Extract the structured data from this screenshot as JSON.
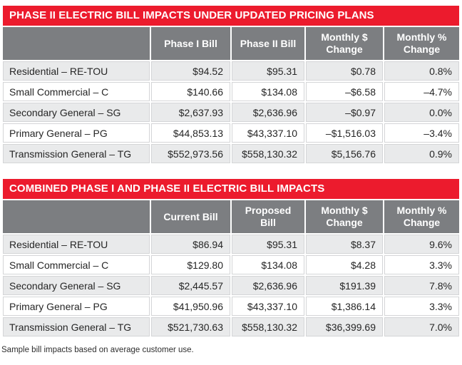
{
  "colors": {
    "accent_red": "#EC1B2D",
    "header_gray": "#7C7E81",
    "row_alt_gray": "#E9EAEB"
  },
  "footnote": "Sample bill impacts based on average customer use.",
  "tables": [
    {
      "title": "PHASE II ELECTRIC BILL IMPACTS UNDER UPDATED PRICING PLANS",
      "columns": [
        "",
        "Phase I Bill",
        "Phase II Bill",
        "Monthly $\nChange",
        "Monthly %\nChange"
      ],
      "rows": [
        [
          "Residential – RE-TOU",
          "$94.52",
          "$95.31",
          "$0.78",
          "0.8%"
        ],
        [
          "Small Commercial – C",
          "$140.66",
          "$134.08",
          "–$6.58",
          "–4.7%"
        ],
        [
          "Secondary General – SG",
          "$2,637.93",
          "$2,636.96",
          "–$0.97",
          "0.0%"
        ],
        [
          "Primary General – PG",
          "$44,853.13",
          "$43,337.10",
          "–$1,516.03",
          "–3.4%"
        ],
        [
          "Transmission General – TG",
          "$552,973.56",
          "$558,130.32",
          "$5,156.76",
          "0.9%"
        ]
      ]
    },
    {
      "title": "COMBINED PHASE I AND PHASE II ELECTRIC BILL IMPACTS",
      "columns": [
        "",
        "Current Bill",
        "Proposed\nBill",
        "Monthly $\nChange",
        "Monthly %\nChange"
      ],
      "rows": [
        [
          "Residential – RE-TOU",
          "$86.94",
          "$95.31",
          "$8.37",
          "9.6%"
        ],
        [
          "Small Commercial – C",
          "$129.80",
          "$134.08",
          "$4.28",
          "3.3%"
        ],
        [
          "Secondary General – SG",
          "$2,445.57",
          "$2,636.96",
          "$191.39",
          "7.8%"
        ],
        [
          "Primary General – PG",
          "$41,950.96",
          "$43,337.10",
          "$1,386.14",
          "3.3%"
        ],
        [
          "Transmission General – TG",
          "$521,730.63",
          "$558,130.32",
          "$36,399.69",
          "7.0%"
        ]
      ]
    }
  ]
}
